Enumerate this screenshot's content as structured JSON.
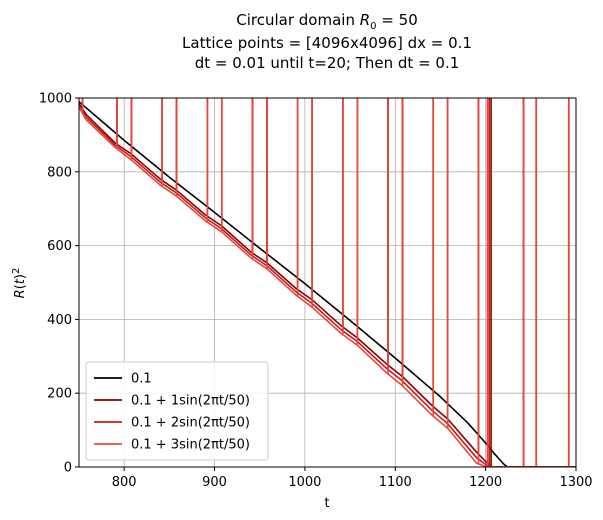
{
  "chart_data": {
    "type": "line",
    "title_lines": [
      "Circular domain R₀ = 50",
      "Lattice points = [4096x4096] dx = 0.1",
      "dt = 0.01 until t=20; Then dt = 0.1"
    ],
    "xlabel": "t",
    "ylabel": "R(t)²",
    "xlim": [
      750,
      1300
    ],
    "ylim": [
      0,
      1000
    ],
    "x_ticks": [
      800,
      900,
      1000,
      1100,
      1200,
      1300
    ],
    "y_ticks": [
      0,
      200,
      400,
      600,
      800,
      1000
    ],
    "x_tick_labels": [
      "800",
      "900",
      "1000",
      "1100",
      "1200",
      "1300"
    ],
    "y_tick_labels": [
      "0",
      "200",
      "400",
      "600",
      "800",
      "1000"
    ],
    "grid": true,
    "legend_position": "lower-left",
    "series": [
      {
        "name": "0.1",
        "color": "#000000",
        "x": [
          750,
          800,
          850,
          900,
          950,
          1000,
          1050,
          1100,
          1150,
          1180,
          1200,
          1210,
          1220,
          1224,
          1300
        ],
        "y": [
          990,
          885,
          785,
          690,
          593,
          497,
          397,
          295,
          190,
          120,
          65,
          35,
          8,
          0,
          0
        ]
      },
      {
        "name": "0.1 + 1sin(2πt/50)",
        "color": "#8b0000",
        "x": [
          750,
          758,
          790,
          808,
          840,
          858,
          890,
          908,
          940,
          958,
          990,
          1008,
          1040,
          1058,
          1090,
          1108,
          1140,
          1158,
          1190,
          1206,
          1240,
          1256,
          1290,
          1300
        ],
        "y": [
          985,
          955,
          878,
          848,
          780,
          750,
          683,
          653,
          583,
          553,
          484,
          453,
          383,
          350,
          280,
          245,
          168,
          130,
          40,
          0,
          0,
          0,
          0,
          0
        ],
        "spike_x": [
          754,
          792,
          808,
          842,
          858,
          892,
          908,
          942,
          958,
          992,
          1008,
          1042,
          1058,
          1092,
          1108,
          1142,
          1158,
          1192,
          1206,
          1242,
          1256,
          1292
        ]
      },
      {
        "name": "0.1 + 2sin(2πt/50)",
        "color": "#cc1a1a",
        "x": [
          750,
          758,
          790,
          808,
          840,
          858,
          890,
          908,
          940,
          958,
          990,
          1008,
          1040,
          1058,
          1090,
          1108,
          1140,
          1158,
          1190,
          1204,
          1240,
          1256,
          1290,
          1300
        ],
        "y": [
          980,
          948,
          872,
          840,
          772,
          742,
          675,
          645,
          575,
          545,
          475,
          443,
          372,
          340,
          268,
          233,
          155,
          117,
          25,
          0,
          0,
          0,
          0,
          0
        ],
        "spike_x": [
          754,
          792,
          808,
          842,
          858,
          892,
          908,
          942,
          958,
          992,
          1008,
          1042,
          1058,
          1092,
          1108,
          1142,
          1158,
          1192,
          1204,
          1242,
          1256,
          1292
        ]
      },
      {
        "name": "0.1 + 3sin(2πt/50)",
        "color": "#e8483c",
        "x": [
          750,
          758,
          790,
          808,
          840,
          858,
          890,
          908,
          940,
          958,
          990,
          1008,
          1040,
          1058,
          1090,
          1108,
          1140,
          1158,
          1190,
          1202,
          1240,
          1256,
          1290,
          1300
        ],
        "y": [
          975,
          941,
          866,
          832,
          764,
          734,
          667,
          637,
          567,
          537,
          466,
          433,
          362,
          330,
          256,
          220,
          142,
          105,
          10,
          0,
          0,
          0,
          0,
          0
        ],
        "spike_x": [
          754,
          792,
          808,
          842,
          858,
          892,
          908,
          942,
          958,
          992,
          1008,
          1042,
          1058,
          1092,
          1108,
          1142,
          1158,
          1192,
          1202,
          1242,
          1256,
          1292
        ]
      }
    ]
  }
}
